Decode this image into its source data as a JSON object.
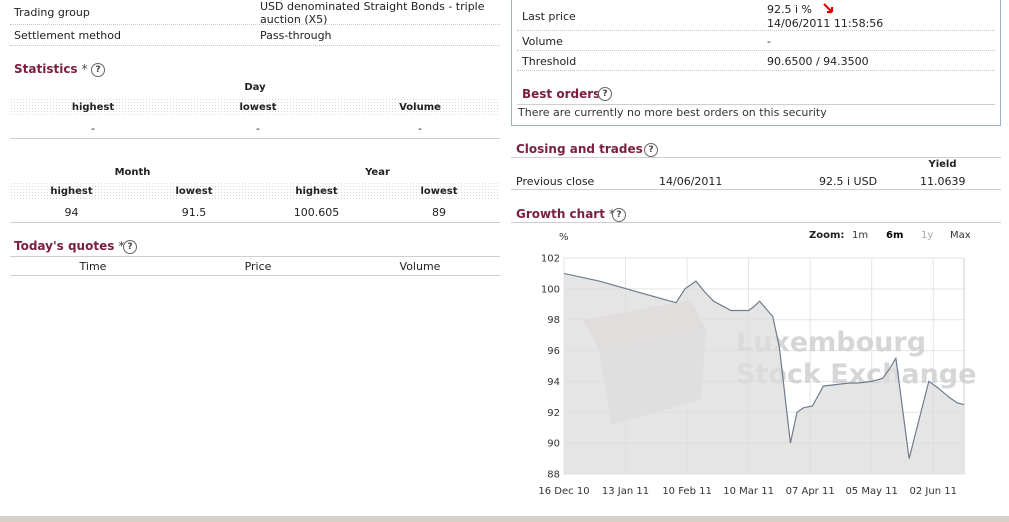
{
  "info": {
    "trading_group_label": "Trading group",
    "trading_group_value_l1": "USD denominated Straight Bonds - triple",
    "trading_group_value_l2": "auction (X5)",
    "settlement_label": "Settlement method",
    "settlement_value": "Pass-through"
  },
  "statistics": {
    "title": "Statistics",
    "star": "*",
    "day_label": "Day",
    "day_cols": [
      "highest",
      "lowest",
      "Volume"
    ],
    "day_vals": [
      "-",
      "-",
      "-"
    ],
    "month_label": "Month",
    "year_label": "Year",
    "my_cols": [
      "highest",
      "lowest",
      "highest",
      "lowest"
    ],
    "my_vals": [
      "94",
      "91.5",
      "100.605",
      "89"
    ]
  },
  "todays_quotes": {
    "title": "Today's quotes",
    "star": "*",
    "cols": [
      "Time",
      "Price",
      "Volume"
    ]
  },
  "price_box": {
    "last_price_label": "Last price",
    "last_price_value": "92.5 i  %",
    "last_price_time": "14/06/2011 11:58:56",
    "volume_label": "Volume",
    "volume_value": "-",
    "threshold_label": "Threshold",
    "threshold_value": "90.6500 / 94.3500",
    "best_orders_title": "Best orders",
    "best_orders_text": "There are currently no more best orders on this security",
    "trend_color": "#e00000"
  },
  "closing": {
    "title": "Closing and trades",
    "star": "*",
    "yield_header": "Yield",
    "row_label": "Previous close",
    "row_date": "14/06/2011",
    "row_price": "92.5 i USD",
    "row_yield": "11.0639"
  },
  "growth": {
    "title": "Growth chart",
    "star": "*",
    "zoom_label": "Zoom:",
    "zoom_options": [
      "1m",
      "6m",
      "1y",
      "Max"
    ],
    "zoom_selected": "6m",
    "watermark_l1": "Luxembourg",
    "watermark_l2": "Stock Exchange"
  },
  "chart_data": {
    "type": "area",
    "ylabel": "%",
    "ylim": [
      88,
      102
    ],
    "yticks": [
      88,
      90,
      92,
      94,
      96,
      98,
      100,
      102
    ],
    "xtick_labels": [
      "16 Dec 10",
      "13 Jan 11",
      "10 Feb 11",
      "10 Mar 11",
      "07 Apr 11",
      "05 May 11",
      "02 Jun 11"
    ],
    "x_range": [
      0,
      182
    ],
    "xtick_pos": [
      0,
      28,
      56,
      84,
      112,
      140,
      168
    ],
    "x": [
      0,
      16,
      46,
      51,
      55,
      60,
      64,
      68,
      72,
      76,
      80,
      84,
      86,
      89,
      95,
      98,
      103,
      106,
      109,
      113,
      118,
      124,
      130,
      134,
      140,
      145,
      148,
      151,
      157,
      166,
      170,
      175,
      179,
      182
    ],
    "values": [
      101.0,
      100.5,
      99.3,
      99.1,
      100.0,
      100.5,
      99.8,
      99.2,
      98.9,
      98.6,
      98.6,
      98.6,
      98.8,
      99.2,
      98.2,
      96.2,
      90.0,
      92.0,
      92.3,
      92.4,
      93.7,
      93.8,
      93.9,
      93.9,
      94.0,
      94.2,
      94.8,
      95.5,
      89.0,
      94.0,
      93.6,
      93.0,
      92.6,
      92.5
    ],
    "grid": true,
    "line_color": "#6f7c8c",
    "fill_color": "#dcdcdc"
  }
}
